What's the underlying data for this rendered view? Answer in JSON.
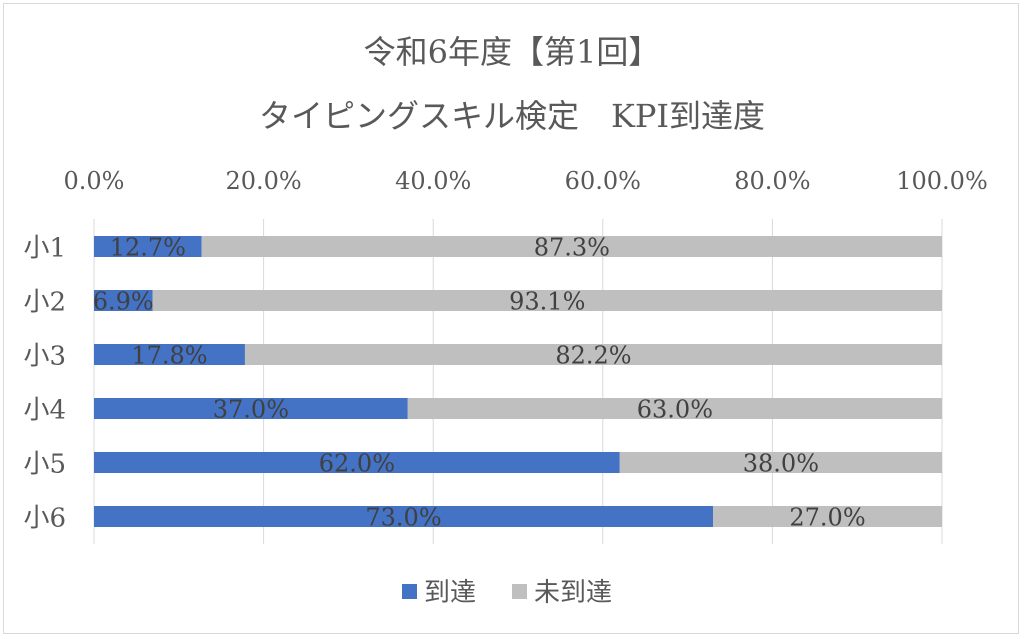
{
  "chart_data": {
    "type": "bar",
    "orientation": "horizontal",
    "stacked": true,
    "title_line1": "令和6年度【第1回】",
    "title_line2": "タイピングスキル検定　KPI到達度",
    "categories": [
      "小1",
      "小2",
      "小3",
      "小4",
      "小5",
      "小6"
    ],
    "series": [
      {
        "name": "到達",
        "values": [
          12.7,
          6.9,
          17.8,
          37.0,
          62.0,
          73.0
        ],
        "labels": [
          "12.7%",
          "6.9%",
          "17.8%",
          "37.0%",
          "62.0%",
          "73.0%"
        ],
        "color": "#4472c4"
      },
      {
        "name": "未到達",
        "values": [
          87.3,
          93.1,
          82.2,
          63.0,
          38.0,
          27.0
        ],
        "labels": [
          "87.3%",
          "93.1%",
          "82.2%",
          "63.0%",
          "38.0%",
          "27.0%"
        ],
        "color": "#bfbfbf"
      }
    ],
    "xlim": [
      0,
      100
    ],
    "xticks": [
      0,
      20,
      40,
      60,
      80,
      100
    ],
    "xtick_labels": [
      "0.0%",
      "20.0%",
      "40.0%",
      "60.0%",
      "80.0%",
      "100.0%"
    ],
    "x_axis_position": "top",
    "grid": true,
    "legend_position": "bottom",
    "gridline_color": "#d9d9d9",
    "text_color": "#595959"
  }
}
